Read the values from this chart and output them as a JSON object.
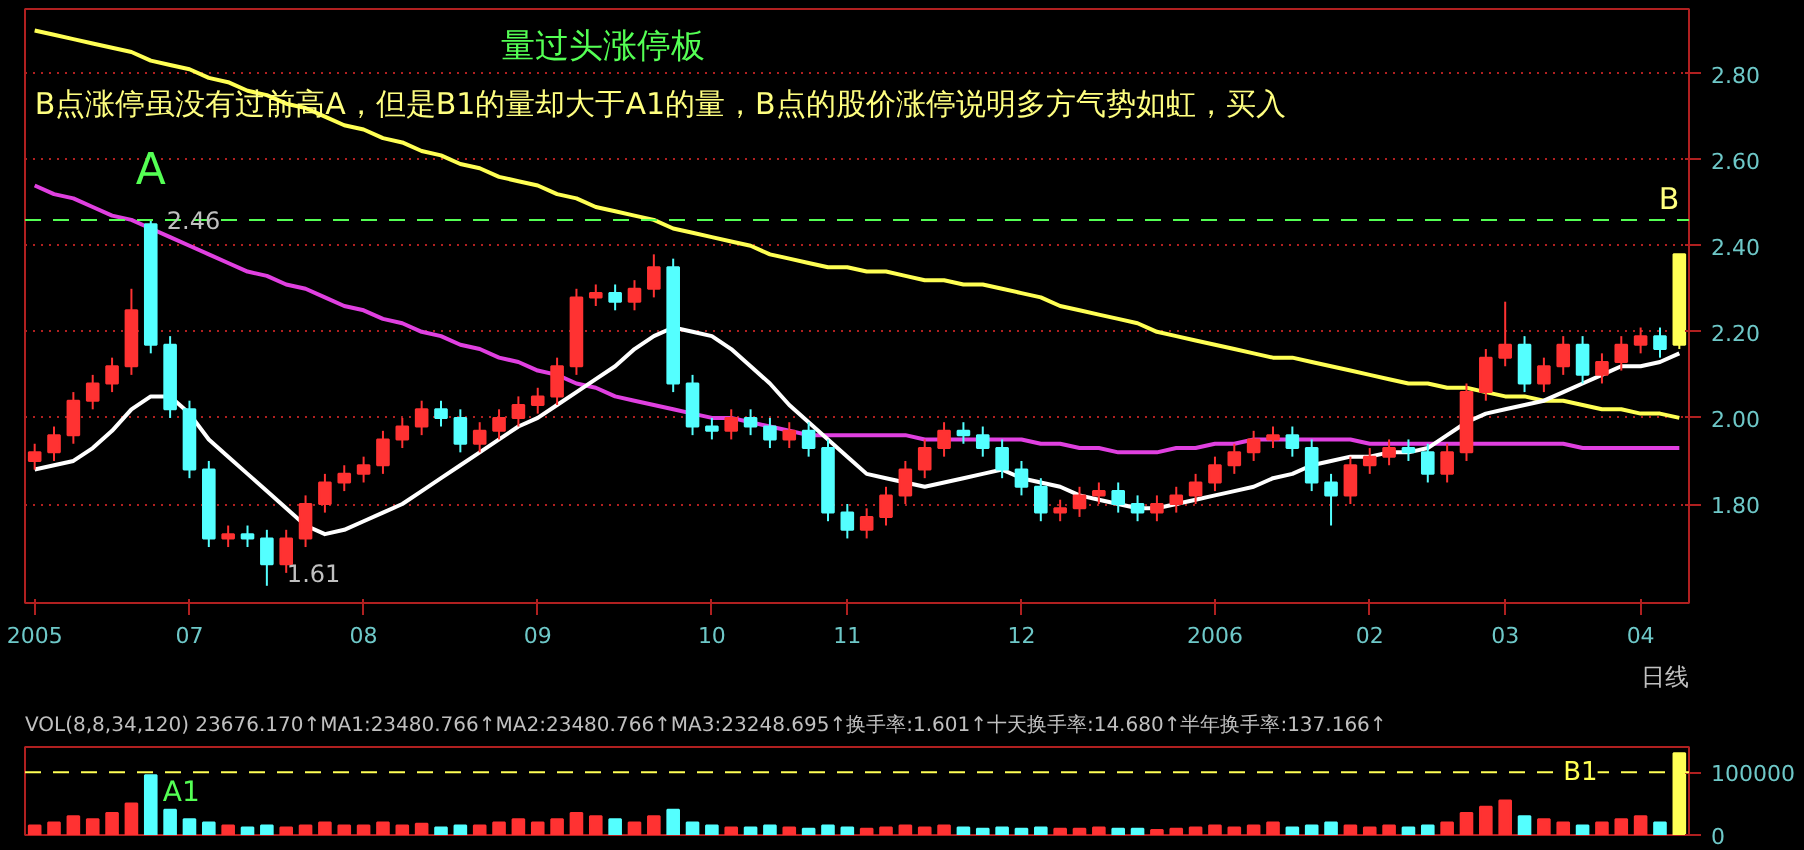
{
  "chart_data": [
    {
      "type": "candlestick",
      "title": "量过头涨停板",
      "subtitle": "B点涨停虽没有过前高A，但是B1的量却大于A1的量，B点的股价涨停说明多方气势如虹，买入",
      "categories": [
        "2005",
        null,
        null,
        null,
        null,
        null,
        null,
        null,
        "07",
        null,
        null,
        null,
        null,
        null,
        null,
        null,
        null,
        "08",
        null,
        null,
        null,
        null,
        null,
        null,
        null,
        null,
        "09",
        null,
        null,
        null,
        null,
        null,
        null,
        null,
        null,
        "10",
        null,
        null,
        null,
        null,
        null,
        null,
        "11",
        null,
        null,
        null,
        null,
        null,
        null,
        null,
        null,
        "12",
        null,
        null,
        null,
        null,
        null,
        null,
        null,
        null,
        null,
        "2006",
        null,
        null,
        null,
        null,
        null,
        null,
        null,
        "02",
        null,
        null,
        null,
        null,
        null,
        null,
        "03",
        null,
        null,
        null,
        null,
        null,
        null,
        "04",
        null,
        null
      ],
      "ohlc": [
        [
          1.9,
          1.94,
          1.88,
          1.92
        ],
        [
          1.92,
          1.98,
          1.9,
          1.96
        ],
        [
          1.96,
          2.06,
          1.94,
          2.04
        ],
        [
          2.04,
          2.1,
          2.02,
          2.08
        ],
        [
          2.08,
          2.14,
          2.06,
          2.12
        ],
        [
          2.12,
          2.3,
          2.1,
          2.25
        ],
        [
          2.45,
          2.46,
          2.15,
          2.17
        ],
        [
          2.17,
          2.19,
          2.0,
          2.02
        ],
        [
          2.02,
          2.04,
          1.86,
          1.88
        ],
        [
          1.88,
          1.9,
          1.7,
          1.72
        ],
        [
          1.72,
          1.75,
          1.7,
          1.73
        ],
        [
          1.73,
          1.75,
          1.7,
          1.72
        ],
        [
          1.72,
          1.74,
          1.61,
          1.66
        ],
        [
          1.66,
          1.74,
          1.64,
          1.72
        ],
        [
          1.72,
          1.82,
          1.7,
          1.8
        ],
        [
          1.8,
          1.87,
          1.78,
          1.85
        ],
        [
          1.85,
          1.89,
          1.83,
          1.87
        ],
        [
          1.87,
          1.91,
          1.85,
          1.89
        ],
        [
          1.89,
          1.97,
          1.87,
          1.95
        ],
        [
          1.95,
          2.0,
          1.93,
          1.98
        ],
        [
          1.98,
          2.04,
          1.96,
          2.02
        ],
        [
          2.02,
          2.04,
          1.98,
          2.0
        ],
        [
          2.0,
          2.02,
          1.92,
          1.94
        ],
        [
          1.94,
          1.99,
          1.92,
          1.97
        ],
        [
          1.97,
          2.02,
          1.95,
          2.0
        ],
        [
          2.0,
          2.05,
          1.98,
          2.03
        ],
        [
          2.03,
          2.07,
          2.01,
          2.05
        ],
        [
          2.05,
          2.14,
          2.03,
          2.12
        ],
        [
          2.12,
          2.3,
          2.1,
          2.28
        ],
        [
          2.28,
          2.31,
          2.26,
          2.29
        ],
        [
          2.29,
          2.31,
          2.25,
          2.27
        ],
        [
          2.27,
          2.32,
          2.25,
          2.3
        ],
        [
          2.3,
          2.38,
          2.28,
          2.35
        ],
        [
          2.35,
          2.37,
          2.06,
          2.08
        ],
        [
          2.08,
          2.1,
          1.96,
          1.98
        ],
        [
          1.98,
          2.0,
          1.95,
          1.97
        ],
        [
          1.97,
          2.02,
          1.95,
          2.0
        ],
        [
          2.0,
          2.02,
          1.96,
          1.98
        ],
        [
          1.98,
          2.0,
          1.93,
          1.95
        ],
        [
          1.95,
          1.99,
          1.93,
          1.97
        ],
        [
          1.97,
          1.99,
          1.91,
          1.93
        ],
        [
          1.93,
          1.95,
          1.76,
          1.78
        ],
        [
          1.78,
          1.8,
          1.72,
          1.74
        ],
        [
          1.74,
          1.79,
          1.72,
          1.77
        ],
        [
          1.77,
          1.84,
          1.75,
          1.82
        ],
        [
          1.82,
          1.9,
          1.8,
          1.88
        ],
        [
          1.88,
          1.95,
          1.86,
          1.93
        ],
        [
          1.93,
          1.99,
          1.91,
          1.97
        ],
        [
          1.97,
          1.99,
          1.94,
          1.96
        ],
        [
          1.96,
          1.98,
          1.91,
          1.93
        ],
        [
          1.93,
          1.95,
          1.86,
          1.88
        ],
        [
          1.88,
          1.9,
          1.82,
          1.84
        ],
        [
          1.84,
          1.86,
          1.76,
          1.78
        ],
        [
          1.78,
          1.81,
          1.76,
          1.79
        ],
        [
          1.79,
          1.84,
          1.77,
          1.82
        ],
        [
          1.82,
          1.85,
          1.8,
          1.83
        ],
        [
          1.83,
          1.85,
          1.78,
          1.8
        ],
        [
          1.8,
          1.82,
          1.76,
          1.78
        ],
        [
          1.78,
          1.82,
          1.76,
          1.8
        ],
        [
          1.8,
          1.84,
          1.78,
          1.82
        ],
        [
          1.82,
          1.87,
          1.8,
          1.85
        ],
        [
          1.85,
          1.91,
          1.83,
          1.89
        ],
        [
          1.89,
          1.94,
          1.87,
          1.92
        ],
        [
          1.92,
          1.97,
          1.9,
          1.95
        ],
        [
          1.95,
          1.98,
          1.93,
          1.96
        ],
        [
          1.96,
          1.98,
          1.91,
          1.93
        ],
        [
          1.93,
          1.95,
          1.83,
          1.85
        ],
        [
          1.85,
          1.87,
          1.75,
          1.82
        ],
        [
          1.82,
          1.91,
          1.8,
          1.89
        ],
        [
          1.89,
          1.93,
          1.87,
          1.91
        ],
        [
          1.91,
          1.95,
          1.89,
          1.93
        ],
        [
          1.93,
          1.95,
          1.9,
          1.92
        ],
        [
          1.92,
          1.94,
          1.85,
          1.87
        ],
        [
          1.87,
          1.94,
          1.85,
          1.92
        ],
        [
          1.92,
          2.08,
          1.9,
          2.06
        ],
        [
          2.06,
          2.16,
          2.04,
          2.14
        ],
        [
          2.14,
          2.27,
          2.12,
          2.17
        ],
        [
          2.17,
          2.19,
          2.06,
          2.08
        ],
        [
          2.08,
          2.14,
          2.06,
          2.12
        ],
        [
          2.12,
          2.19,
          2.1,
          2.17
        ],
        [
          2.17,
          2.19,
          2.08,
          2.1
        ],
        [
          2.1,
          2.15,
          2.08,
          2.13
        ],
        [
          2.13,
          2.19,
          2.11,
          2.17
        ],
        [
          2.17,
          2.21,
          2.15,
          2.19
        ],
        [
          2.19,
          2.21,
          2.14,
          2.16
        ],
        [
          2.17,
          2.38,
          2.16,
          2.38
        ]
      ],
      "colors": [
        "#ff3232",
        "#ff3232",
        "#ff3232",
        "#ff3232",
        "#ff3232",
        "#ff3232",
        "#54ffff",
        "#54ffff",
        "#54ffff",
        "#54ffff",
        "#ff3232",
        "#54ffff",
        "#54ffff",
        "#ff3232",
        "#ff3232",
        "#ff3232",
        "#ff3232",
        "#ff3232",
        "#ff3232",
        "#ff3232",
        "#ff3232",
        "#54ffff",
        "#54ffff",
        "#ff3232",
        "#ff3232",
        "#ff3232",
        "#ff3232",
        "#ff3232",
        "#ff3232",
        "#ff3232",
        "#54ffff",
        "#ff3232",
        "#ff3232",
        "#54ffff",
        "#54ffff",
        "#54ffff",
        "#ff3232",
        "#54ffff",
        "#54ffff",
        "#ff3232",
        "#54ffff",
        "#54ffff",
        "#54ffff",
        "#ff3232",
        "#ff3232",
        "#ff3232",
        "#ff3232",
        "#ff3232",
        "#54ffff",
        "#54ffff",
        "#54ffff",
        "#54ffff",
        "#54ffff",
        "#ff3232",
        "#ff3232",
        "#ff3232",
        "#54ffff",
        "#54ffff",
        "#ff3232",
        "#ff3232",
        "#ff3232",
        "#ff3232",
        "#ff3232",
        "#ff3232",
        "#ff3232",
        "#54ffff",
        "#54ffff",
        "#54ffff",
        "#ff3232",
        "#ff3232",
        "#ff3232",
        "#54ffff",
        "#54ffff",
        "#ff3232",
        "#ff3232",
        "#ff3232",
        "#ff3232",
        "#54ffff",
        "#ff3232",
        "#ff3232",
        "#54ffff",
        "#ff3232",
        "#ff3232",
        "#ff3232",
        "#54ffff",
        "#ffff54"
      ],
      "series": [
        {
          "type": "line",
          "color": "#ffff54",
          "values": [
            2.9,
            2.89,
            2.88,
            2.87,
            2.86,
            2.85,
            2.83,
            2.82,
            2.81,
            2.79,
            2.78,
            2.76,
            2.75,
            2.73,
            2.72,
            2.7,
            2.68,
            2.67,
            2.65,
            2.64,
            2.62,
            2.61,
            2.59,
            2.58,
            2.56,
            2.55,
            2.54,
            2.52,
            2.51,
            2.49,
            2.48,
            2.47,
            2.46,
            2.44,
            2.43,
            2.42,
            2.41,
            2.4,
            2.38,
            2.37,
            2.36,
            2.35,
            2.35,
            2.34,
            2.34,
            2.33,
            2.32,
            2.32,
            2.31,
            2.31,
            2.3,
            2.29,
            2.28,
            2.26,
            2.25,
            2.24,
            2.23,
            2.22,
            2.2,
            2.19,
            2.18,
            2.17,
            2.16,
            2.15,
            2.14,
            2.14,
            2.13,
            2.12,
            2.11,
            2.1,
            2.09,
            2.08,
            2.08,
            2.07,
            2.07,
            2.06,
            2.05,
            2.05,
            2.04,
            2.04,
            2.03,
            2.02,
            2.02,
            2.01,
            2.01,
            2.0
          ]
        },
        {
          "type": "line",
          "color": "#e040e0",
          "values": [
            2.54,
            2.52,
            2.51,
            2.49,
            2.47,
            2.46,
            2.44,
            2.42,
            2.4,
            2.38,
            2.36,
            2.34,
            2.33,
            2.31,
            2.3,
            2.28,
            2.26,
            2.25,
            2.23,
            2.22,
            2.2,
            2.19,
            2.17,
            2.16,
            2.14,
            2.13,
            2.11,
            2.1,
            2.08,
            2.07,
            2.05,
            2.04,
            2.03,
            2.02,
            2.01,
            2.0,
            2.0,
            1.99,
            1.98,
            1.97,
            1.96,
            1.96,
            1.96,
            1.96,
            1.96,
            1.96,
            1.95,
            1.95,
            1.95,
            1.95,
            1.95,
            1.95,
            1.94,
            1.94,
            1.93,
            1.93,
            1.92,
            1.92,
            1.92,
            1.93,
            1.93,
            1.94,
            1.94,
            1.95,
            1.95,
            1.95,
            1.95,
            1.95,
            1.95,
            1.94,
            1.94,
            1.94,
            1.94,
            1.94,
            1.94,
            1.94,
            1.94,
            1.94,
            1.94,
            1.94,
            1.93,
            1.93,
            1.93,
            1.93,
            1.93,
            1.93
          ]
        },
        {
          "type": "line",
          "color": "#ffffff",
          "values": [
            1.88,
            1.89,
            1.9,
            1.93,
            1.97,
            2.02,
            2.05,
            2.05,
            2.01,
            1.95,
            1.91,
            1.87,
            1.83,
            1.79,
            1.75,
            1.73,
            1.74,
            1.76,
            1.78,
            1.8,
            1.83,
            1.86,
            1.89,
            1.92,
            1.95,
            1.98,
            2.0,
            2.03,
            2.06,
            2.09,
            2.12,
            2.16,
            2.19,
            2.21,
            2.2,
            2.19,
            2.16,
            2.12,
            2.08,
            2.03,
            1.99,
            1.95,
            1.91,
            1.87,
            1.86,
            1.85,
            1.84,
            1.85,
            1.86,
            1.87,
            1.88,
            1.86,
            1.85,
            1.84,
            1.82,
            1.81,
            1.8,
            1.79,
            1.79,
            1.8,
            1.81,
            1.82,
            1.83,
            1.84,
            1.86,
            1.87,
            1.89,
            1.9,
            1.91,
            1.91,
            1.92,
            1.92,
            1.93,
            1.96,
            1.99,
            2.01,
            2.02,
            2.03,
            2.04,
            2.06,
            2.08,
            2.1,
            2.12,
            2.12,
            2.13,
            2.15
          ]
        }
      ],
      "ylim": [
        1.57,
        2.95
      ],
      "yticks": [
        {
          "value": 1.8,
          "label": "1.80"
        },
        {
          "value": 2.0,
          "label": "2.00"
        },
        {
          "value": 2.2,
          "label": "2.20"
        },
        {
          "value": 2.4,
          "label": "2.40"
        },
        {
          "value": 2.6,
          "label": "2.60"
        },
        {
          "value": 2.8,
          "label": "2.80"
        }
      ],
      "grid": "y",
      "ref_lines": [
        {
          "axis": "y",
          "value": 2.46,
          "color": "#54ff54",
          "line_style": "dashed"
        }
      ],
      "annotations": [
        "A",
        {
          "text": "2.46",
          "y": 2.46
        },
        "1.61",
        "B",
        "日线"
      ]
    },
    {
      "type": "bar",
      "title": "VOL(8,8,34,120) 23676.170↑MA1:23480.766↑MA2:23480.766↑MA3:23248.695↑换手率:1.601↑十天换手率:14.680↑半年换手率:137.166↑",
      "categories": [
        "2005",
        null,
        null,
        null,
        null,
        null,
        null,
        null,
        "07",
        null,
        null,
        null,
        null,
        null,
        null,
        null,
        null,
        "08",
        null,
        null,
        null,
        null,
        null,
        null,
        null,
        null,
        "09",
        null,
        null,
        null,
        null,
        null,
        null,
        null,
        null,
        "10",
        null,
        null,
        null,
        null,
        null,
        null,
        "11",
        null,
        null,
        null,
        null,
        null,
        null,
        null,
        null,
        "12",
        null,
        null,
        null,
        null,
        null,
        null,
        null,
        null,
        null,
        "2006",
        null,
        null,
        null,
        null,
        null,
        null,
        null,
        "02",
        null,
        null,
        null,
        null,
        null,
        null,
        "03",
        null,
        null,
        null,
        null,
        null,
        null,
        "04",
        null,
        null
      ],
      "values": [
        15000,
        20000,
        30000,
        25000,
        35000,
        50000,
        95000,
        40000,
        25000,
        20000,
        15000,
        12000,
        15000,
        12000,
        15000,
        20000,
        15000,
        15000,
        20000,
        15000,
        18000,
        12000,
        15000,
        15000,
        20000,
        25000,
        20000,
        25000,
        35000,
        30000,
        25000,
        20000,
        30000,
        40000,
        20000,
        15000,
        12000,
        12000,
        15000,
        12000,
        10000,
        15000,
        12000,
        10000,
        12000,
        15000,
        12000,
        15000,
        12000,
        10000,
        12000,
        10000,
        12000,
        10000,
        10000,
        12000,
        10000,
        10000,
        8000,
        10000,
        12000,
        15000,
        12000,
        15000,
        20000,
        12000,
        15000,
        20000,
        15000,
        12000,
        15000,
        12000,
        15000,
        20000,
        35000,
        45000,
        55000,
        30000,
        25000,
        20000,
        15000,
        20000,
        25000,
        30000,
        20000,
        130000
      ],
      "colors": [
        "#ff3232",
        "#ff3232",
        "#ff3232",
        "#ff3232",
        "#ff3232",
        "#ff3232",
        "#54ffff",
        "#54ffff",
        "#54ffff",
        "#54ffff",
        "#ff3232",
        "#54ffff",
        "#54ffff",
        "#ff3232",
        "#ff3232",
        "#ff3232",
        "#ff3232",
        "#ff3232",
        "#ff3232",
        "#ff3232",
        "#ff3232",
        "#54ffff",
        "#54ffff",
        "#ff3232",
        "#ff3232",
        "#ff3232",
        "#ff3232",
        "#ff3232",
        "#ff3232",
        "#ff3232",
        "#54ffff",
        "#ff3232",
        "#ff3232",
        "#54ffff",
        "#54ffff",
        "#54ffff",
        "#ff3232",
        "#54ffff",
        "#54ffff",
        "#ff3232",
        "#54ffff",
        "#54ffff",
        "#54ffff",
        "#ff3232",
        "#ff3232",
        "#ff3232",
        "#ff3232",
        "#ff3232",
        "#54ffff",
        "#54ffff",
        "#54ffff",
        "#54ffff",
        "#54ffff",
        "#ff3232",
        "#ff3232",
        "#ff3232",
        "#54ffff",
        "#54ffff",
        "#ff3232",
        "#ff3232",
        "#ff3232",
        "#ff3232",
        "#ff3232",
        "#ff3232",
        "#ff3232",
        "#54ffff",
        "#54ffff",
        "#54ffff",
        "#ff3232",
        "#ff3232",
        "#ff3232",
        "#54ffff",
        "#54ffff",
        "#ff3232",
        "#ff3232",
        "#ff3232",
        "#ff3232",
        "#54ffff",
        "#ff3232",
        "#ff3232",
        "#54ffff",
        "#ff3232",
        "#ff3232",
        "#ff3232",
        "#54ffff",
        "#ffff54"
      ],
      "ylim": [
        0,
        140000
      ],
      "yticks": [
        0,
        100000
      ],
      "tick_labels": "y",
      "ref_lines": [
        {
          "axis": "y",
          "value": 100000,
          "label": "B1",
          "color": "#ffff54",
          "line_style": "dashed"
        }
      ],
      "annotations": [
        "A1"
      ]
    }
  ]
}
